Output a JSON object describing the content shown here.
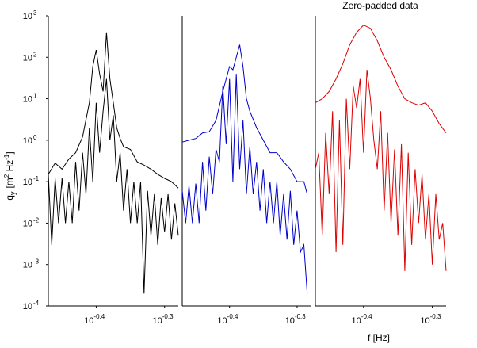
{
  "figure": {
    "ylabel_base": "q",
    "ylabel_sub": "y",
    "ylabel_unit": "[m",
    "ylabel_unit_exp": "2",
    "ylabel_unit_mid": " Hz",
    "ylabel_unit_exp2": "-1",
    "ylabel_unit_end": "]",
    "xlabel": "f [Hz]",
    "panel3_title": "Zero-padded data"
  },
  "chart_data": [
    {
      "type": "line",
      "title": "",
      "xlabel": "",
      "ylabel": "q_y [m^2 Hz^-1]",
      "xscale": "log",
      "yscale": "log",
      "xlim": [
        -0.47,
        -0.28
      ],
      "ylim": [
        0.0001,
        1000
      ],
      "x_ticks": [
        {
          "base": "10",
          "exp": "-0.4",
          "value": -0.4
        },
        {
          "base": "10",
          "exp": "-0.3",
          "value": -0.3
        }
      ],
      "y_ticks": [
        {
          "base": "10",
          "exp": "-4",
          "value": -4
        },
        {
          "base": "10",
          "exp": "-3",
          "value": -3
        },
        {
          "base": "10",
          "exp": "-2",
          "value": -2
        },
        {
          "base": "10",
          "exp": "-1",
          "value": -1
        },
        {
          "base": "10",
          "exp": "0",
          "value": 0
        },
        {
          "base": "10",
          "exp": "1",
          "value": 1
        },
        {
          "base": "10",
          "exp": "2",
          "value": 2
        },
        {
          "base": "10",
          "exp": "3",
          "value": 3
        }
      ],
      "color": "#000000",
      "series": [
        {
          "x": [
            -0.47,
            -0.46,
            -0.45,
            -0.44,
            -0.43,
            -0.42,
            -0.41,
            -0.405,
            -0.4,
            -0.395,
            -0.39,
            -0.385,
            -0.38,
            -0.375,
            -0.37,
            -0.365,
            -0.36,
            -0.35,
            -0.34,
            -0.33,
            -0.32,
            -0.31,
            -0.3,
            -0.29,
            -0.28
          ],
          "y": [
            0.15,
            0.28,
            0.2,
            0.35,
            0.5,
            1.2,
            8,
            60,
            150,
            40,
            15,
            400,
            30,
            8,
            2,
            1.1,
            0.7,
            0.6,
            0.3,
            0.25,
            0.2,
            0.15,
            0.12,
            0.1,
            0.07
          ]
        },
        {
          "x": [
            -0.47,
            -0.465,
            -0.46,
            -0.455,
            -0.45,
            -0.445,
            -0.44,
            -0.435,
            -0.43,
            -0.425,
            -0.42,
            -0.415,
            -0.41,
            -0.405,
            -0.4,
            -0.395,
            -0.39,
            -0.385,
            -0.38,
            -0.375,
            -0.37,
            -0.365,
            -0.36,
            -0.355,
            -0.35,
            -0.345,
            -0.34,
            -0.335,
            -0.33,
            -0.325,
            -0.32,
            -0.315,
            -0.31,
            -0.305,
            -0.3,
            -0.295,
            -0.29,
            -0.285,
            -0.28
          ],
          "y": [
            0.15,
            0.003,
            0.12,
            0.01,
            0.12,
            0.01,
            0.1,
            0.01,
            0.3,
            0.02,
            0.5,
            0.05,
            2,
            0.1,
            8,
            0.5,
            5,
            30,
            1,
            4,
            0.1,
            0.5,
            0.02,
            0.2,
            0.01,
            0.1,
            0.01,
            0.1,
            0.0002,
            0.06,
            0.005,
            0.05,
            0.003,
            0.04,
            0.006,
            0.05,
            0.004,
            0.03,
            0.005
          ]
        }
      ]
    },
    {
      "type": "line",
      "title": "",
      "xlabel": "",
      "ylabel": "",
      "xscale": "log",
      "yscale": "log",
      "xlim": [
        -0.47,
        -0.28
      ],
      "ylim": [
        0.0001,
        1000
      ],
      "x_ticks": [
        {
          "base": "10",
          "exp": "-0.4",
          "value": -0.4
        },
        {
          "base": "10",
          "exp": "-0.3",
          "value": -0.3
        }
      ],
      "color": "#0000cc",
      "series": [
        {
          "x": [
            -0.47,
            -0.46,
            -0.45,
            -0.44,
            -0.43,
            -0.42,
            -0.41,
            -0.4,
            -0.395,
            -0.39,
            -0.385,
            -0.38,
            -0.375,
            -0.37,
            -0.36,
            -0.35,
            -0.34,
            -0.33,
            -0.32,
            -0.31,
            -0.3,
            -0.29,
            -0.285
          ],
          "y": [
            0.9,
            1.0,
            1.1,
            1.5,
            1.6,
            3,
            15,
            60,
            50,
            100,
            200,
            60,
            10,
            5,
            2,
            1,
            0.5,
            0.5,
            0.3,
            0.2,
            0.1,
            0.1,
            0.05
          ]
        },
        {
          "x": [
            -0.47,
            -0.465,
            -0.46,
            -0.455,
            -0.45,
            -0.445,
            -0.44,
            -0.435,
            -0.43,
            -0.425,
            -0.42,
            -0.415,
            -0.41,
            -0.405,
            -0.4,
            -0.395,
            -0.39,
            -0.385,
            -0.38,
            -0.375,
            -0.37,
            -0.365,
            -0.36,
            -0.355,
            -0.35,
            -0.345,
            -0.34,
            -0.335,
            -0.33,
            -0.325,
            -0.32,
            -0.315,
            -0.31,
            -0.305,
            -0.3,
            -0.295,
            -0.29,
            -0.285
          ],
          "y": [
            0.06,
            0.01,
            0.08,
            0.01,
            0.09,
            0.01,
            0.3,
            0.02,
            0.4,
            0.05,
            0.6,
            0.3,
            20,
            0.8,
            30,
            0.1,
            40,
            0.2,
            3,
            0.05,
            0.7,
            0.05,
            0.3,
            0.02,
            0.2,
            0.01,
            0.1,
            0.01,
            0.1,
            0.005,
            0.05,
            0.004,
            0.06,
            0.003,
            0.02,
            0.002,
            0.003,
            0.0002
          ]
        }
      ]
    },
    {
      "type": "line",
      "title": "Zero-padded data",
      "xlabel": "f [Hz]",
      "ylabel": "",
      "xscale": "log",
      "yscale": "log",
      "xlim": [
        -0.47,
        -0.28
      ],
      "ylim": [
        0.0001,
        1000
      ],
      "x_ticks": [
        {
          "base": "10",
          "exp": "-0.4",
          "value": -0.4
        },
        {
          "base": "10",
          "exp": "-0.3",
          "value": -0.3
        }
      ],
      "color": "#dd0000",
      "series": [
        {
          "x": [
            -0.47,
            -0.46,
            -0.45,
            -0.44,
            -0.43,
            -0.42,
            -0.41,
            -0.4,
            -0.39,
            -0.38,
            -0.37,
            -0.36,
            -0.35,
            -0.34,
            -0.33,
            -0.32,
            -0.31,
            -0.3,
            -0.29,
            -0.28
          ],
          "y": [
            8,
            10,
            15,
            30,
            70,
            200,
            400,
            600,
            500,
            250,
            100,
            50,
            20,
            10,
            8,
            7,
            8,
            5,
            2.5,
            1.5
          ]
        },
        {
          "x": [
            -0.47,
            -0.465,
            -0.46,
            -0.455,
            -0.45,
            -0.445,
            -0.44,
            -0.435,
            -0.43,
            -0.425,
            -0.42,
            -0.415,
            -0.41,
            -0.405,
            -0.4,
            -0.395,
            -0.39,
            -0.385,
            -0.38,
            -0.375,
            -0.37,
            -0.365,
            -0.36,
            -0.355,
            -0.35,
            -0.345,
            -0.34,
            -0.335,
            -0.33,
            -0.325,
            -0.32,
            -0.315,
            -0.31,
            -0.305,
            -0.3,
            -0.295,
            -0.29,
            -0.285,
            -0.28
          ],
          "y": [
            0.2,
            0.5,
            0.005,
            1.5,
            0.05,
            5,
            0.002,
            3,
            0.003,
            10,
            0.2,
            20,
            6,
            30,
            0.5,
            50,
            10,
            1,
            0.2,
            5,
            0.02,
            1.5,
            0.01,
            0.6,
            0.005,
            0.8,
            0.0007,
            0.5,
            0.003,
            0.2,
            0.01,
            0.15,
            0.004,
            0.05,
            0.001,
            0.05,
            0.004,
            0.01,
            0.0007
          ]
        }
      ]
    }
  ]
}
